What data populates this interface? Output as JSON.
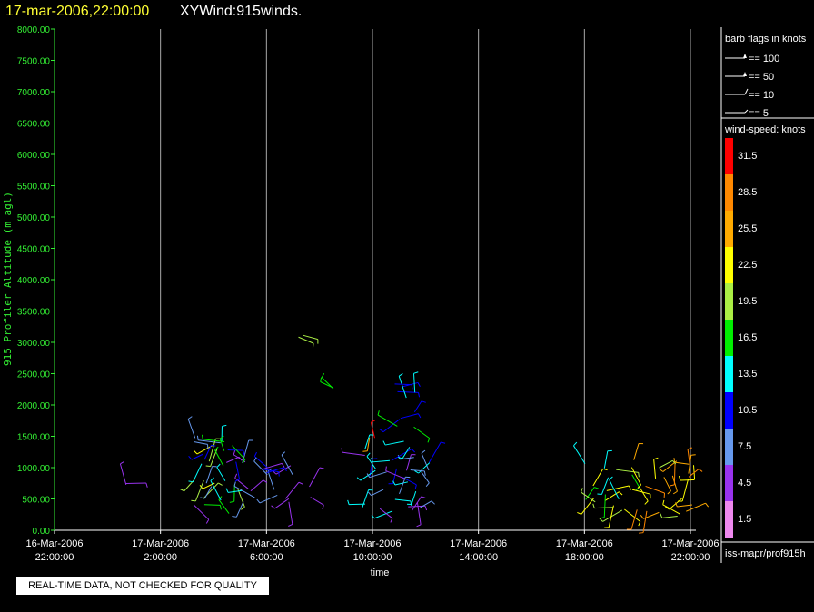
{
  "header": {
    "datetime": "17-mar-2006,22:00:00",
    "product": "XYWind:915winds."
  },
  "notice": "REAL-TIME DATA, NOT CHECKED FOR QUALITY",
  "source_label": "iss-mapr/prof915h",
  "colors": {
    "background": "#000000",
    "axis_y": "#33ee33",
    "axis_x": "#ffffff",
    "header_datetime": "#ffff33",
    "gridline": "#aaaaaa"
  },
  "chart_data": {
    "type": "scatter",
    "subtype": "wind-barbs",
    "ylabel": "915 Profiler Altitude (m agl)",
    "xlabel": "time",
    "ylim": [
      0,
      8000
    ],
    "y_ticks": [
      "0.00",
      "500.00",
      "1000.00",
      "1500.00",
      "2000.00",
      "2500.00",
      "3000.00",
      "3500.00",
      "4000.00",
      "4500.00",
      "5000.00",
      "5500.00",
      "6000.00",
      "6500.00",
      "7000.00",
      "7500.00",
      "8000.00"
    ],
    "x_ticks": [
      {
        "date": "16-Mar-2006",
        "time": "22:00:00"
      },
      {
        "date": "17-Mar-2006",
        "time": "2:00:00"
      },
      {
        "date": "17-Mar-2006",
        "time": "6:00:00"
      },
      {
        "date": "17-Mar-2006",
        "time": "10:00:00"
      },
      {
        "date": "17-Mar-2006",
        "time": "14:00:00"
      },
      {
        "date": "17-Mar-2006",
        "time": "18:00:00"
      },
      {
        "date": "17-Mar-2006",
        "time": "22:00:00"
      }
    ],
    "x_hours": [
      0,
      4,
      8,
      12,
      16,
      20,
      24
    ],
    "xlim_hours": [
      0,
      24
    ],
    "grid": "vertical-at-x-ticks",
    "barb_legend": {
      "title": "barb flags in knots",
      "items": [
        "== 100",
        "== 50",
        "== 10",
        "== 5"
      ]
    },
    "colorbar": {
      "title": "wind-speed: knots",
      "labels": [
        "31.5",
        "28.5",
        "25.5",
        "22.5",
        "19.5",
        "16.5",
        "13.5",
        "10.5",
        "7.5",
        "4.5",
        "1.5"
      ],
      "colors": [
        "#ff0000",
        "#ff8800",
        "#ffaa00",
        "#ffff00",
        "#aaee44",
        "#00ee00",
        "#00ffff",
        "#0000ff",
        "#6699ee",
        "#9933ee",
        "#ee88ee"
      ]
    },
    "clusters": [
      {
        "t0": 2.6,
        "t1": 2.75,
        "z0": 700,
        "z1": 850,
        "speeds": [
          4.5,
          4.5
        ]
      },
      {
        "t0": 5.0,
        "t1": 7.6,
        "z0": 250,
        "z1": 1450,
        "speeds": [
          4.5,
          7.5,
          10.5,
          13.5,
          16.5,
          19.5,
          22.5
        ]
      },
      {
        "t0": 5.2,
        "t1": 5.4,
        "z0": 1400,
        "z1": 1500,
        "speeds": [
          7.5
        ]
      },
      {
        "t0": 7.6,
        "t1": 9.0,
        "z0": 300,
        "z1": 1050,
        "speeds": [
          4.5,
          7.5,
          10.5
        ]
      },
      {
        "t0": 9.2,
        "t1": 9.8,
        "z0": 450,
        "z1": 800,
        "speeds": [
          4.5,
          7.5,
          10.5
        ]
      },
      {
        "t0": 9.0,
        "t1": 9.6,
        "z0": 3050,
        "z1": 3120,
        "speeds": [
          19.5
        ]
      },
      {
        "t0": 10.2,
        "t1": 10.6,
        "z0": 2150,
        "z1": 2400,
        "speeds": [
          16.5
        ]
      },
      {
        "t0": 11.6,
        "t1": 14.2,
        "z0": 250,
        "z1": 1300,
        "speeds": [
          4.5,
          7.5,
          10.5,
          13.5
        ]
      },
      {
        "t0": 11.7,
        "t1": 12.1,
        "z0": 1450,
        "z1": 1650,
        "speeds": [
          28.5,
          31.5,
          25.5
        ]
      },
      {
        "t0": 12.8,
        "t1": 13.8,
        "z0": 1300,
        "z1": 2400,
        "speeds": [
          10.5,
          13.5,
          16.5
        ]
      },
      {
        "t0": 20.0,
        "t1": 21.8,
        "z0": 200,
        "z1": 1100,
        "speeds": [
          13.5,
          16.5,
          19.5,
          22.5
        ]
      },
      {
        "t0": 21.8,
        "t1": 24.2,
        "z0": 200,
        "z1": 1150,
        "speeds": [
          19.5,
          22.5,
          25.5,
          28.5
        ]
      }
    ]
  }
}
